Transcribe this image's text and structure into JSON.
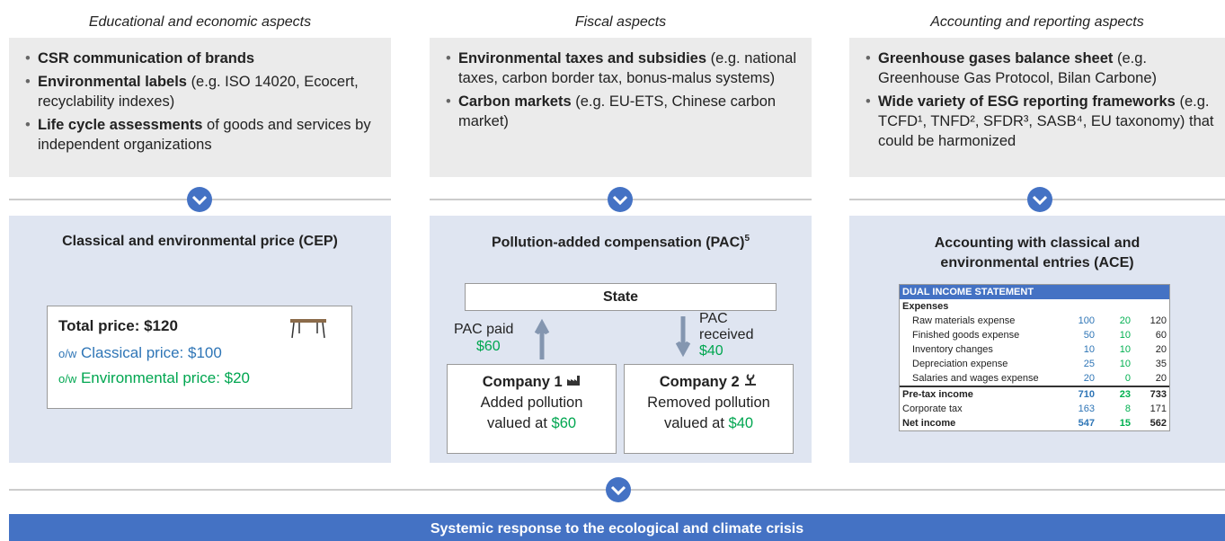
{
  "columns": [
    {
      "heading": "Educational and economic aspects",
      "bullets": [
        {
          "bold": "CSR communication of brands"
        },
        {
          "bold": "Environmental labels",
          "text": "(e.g. ISO 14020, Ecocert, recyclability indexes)"
        },
        {
          "bold": "Life cycle assessments",
          "text": "of goods and services by independent organizations"
        }
      ]
    },
    {
      "heading": "Fiscal aspects",
      "bullets": [
        {
          "bold": "Environmental taxes and subsidies",
          "text": "(e.g. national taxes, carbon border tax, bonus-malus systems)"
        },
        {
          "bold": "Carbon markets",
          "text": "(e.g. EU-ETS, Chinese carbon market)"
        }
      ]
    },
    {
      "heading": "Accounting and reporting aspects",
      "bullets": [
        {
          "bold": "Greenhouse gases balance sheet",
          "text": "(e.g. Greenhouse Gas Protocol, Bilan Carbone)"
        },
        {
          "bold": "Wide variety of ESG reporting frameworks",
          "text": "(e.g. TCFD¹, TNFD², SFDR³, SASB⁴, EU taxonomy) that could be harmonized"
        }
      ]
    }
  ],
  "cep": {
    "title": "Classical and environmental price (CEP)",
    "total": "Total price: $120",
    "ow": "o/w",
    "classical": "Classical price: $100",
    "environmental": "Environmental price: $20"
  },
  "pac": {
    "title": "Pollution-added compensation (PAC)",
    "footnote": "5",
    "state": "State",
    "paid_label": "PAC paid",
    "paid_amount": "$60",
    "received_label": "PAC received",
    "received_amount": "$40",
    "company1": {
      "name": "Company 1",
      "text": "Added pollution valued at",
      "amount": "$60"
    },
    "company2": {
      "name": "Company 2",
      "text": "Removed pollution valued at",
      "amount": "$40"
    }
  },
  "ace": {
    "title": "Accounting with classical and environmental entries (ACE)",
    "table_title": "DUAL INCOME STATEMENT",
    "section": "Expenses",
    "rows": [
      [
        "Raw materials expense",
        100,
        20,
        120
      ],
      [
        "Finished goods expense",
        50,
        10,
        60
      ],
      [
        "Inventory changes",
        10,
        10,
        20
      ],
      [
        "Depreciation expense",
        25,
        10,
        35
      ],
      [
        "Salaries and wages expense",
        20,
        0,
        20
      ]
    ],
    "totals": [
      [
        "Pre-tax income",
        710,
        23,
        733
      ],
      [
        "Corporate tax",
        163,
        8,
        171
      ],
      [
        "Net income",
        547,
        15,
        562
      ]
    ]
  },
  "footer": "Systemic response to the ecological and climate crisis"
}
